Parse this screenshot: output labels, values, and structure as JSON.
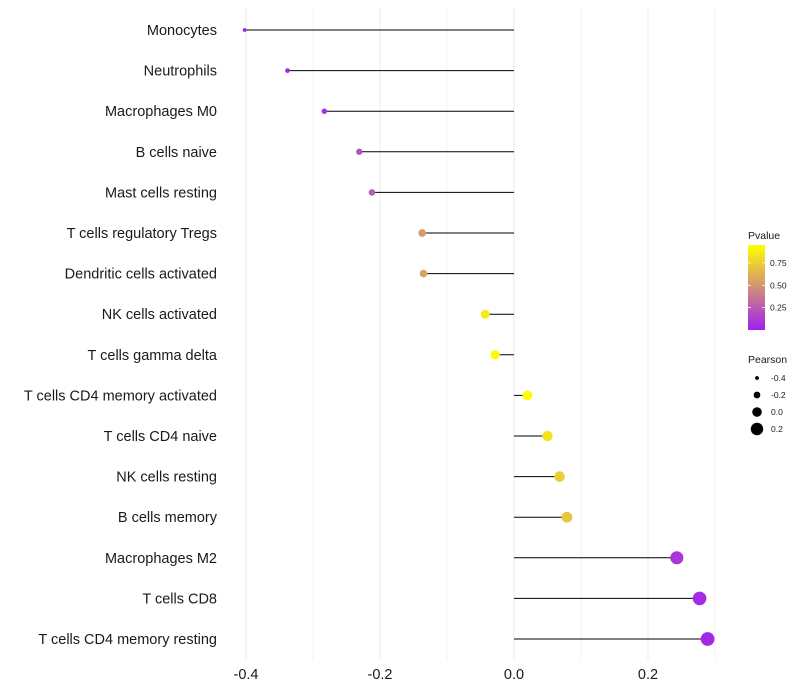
{
  "chart_data": {
    "type": "lollipop",
    "title": "",
    "xlabel": "",
    "ylabel": "",
    "xlim": [
      -0.4,
      0.3
    ],
    "xticks": [
      -0.4,
      -0.2,
      0.0,
      0.2
    ],
    "xtick_labels": [
      "-0.4",
      "-0.2",
      "0.0",
      "0.2"
    ],
    "grid": true,
    "baseline": 0,
    "categories": [
      "Monocytes",
      "Neutrophils",
      "Macrophages M0",
      "B cells naive",
      "Mast cells resting",
      "T cells regulatory  Tregs",
      "Dendritic cells activated",
      "NK cells activated",
      "T cells gamma delta",
      "T cells CD4 memory activated",
      "T cells CD4 naive",
      "NK cells resting",
      "B cells memory",
      "Macrophages M2",
      "T cells CD8",
      "T cells CD4 memory resting"
    ],
    "pearson": [
      -0.402,
      -0.338,
      -0.283,
      -0.231,
      -0.212,
      -0.137,
      -0.135,
      -0.043,
      -0.028,
      0.02,
      0.05,
      0.068,
      0.079,
      0.243,
      0.277,
      0.289
    ],
    "pvalue": [
      0.01,
      0.03,
      0.07,
      0.2,
      0.27,
      0.53,
      0.56,
      0.86,
      0.92,
      0.94,
      0.83,
      0.74,
      0.71,
      0.09,
      0.05,
      0.04
    ],
    "legend": {
      "color": {
        "title": "Pvalue",
        "ticks": [
          0.75,
          0.5,
          0.25
        ],
        "tick_labels": [
          "0.75",
          "0.50",
          "0.25"
        ],
        "range": [
          0,
          0.95
        ],
        "low_color": "#a020f0",
        "high_color": "#ffff00"
      },
      "size": {
        "title": "Pearson",
        "values": [
          -0.4,
          -0.2,
          0.0,
          0.2
        ],
        "labels": [
          "-0.4",
          "-0.2",
          "0.0",
          "0.2"
        ]
      },
      "placement": "right"
    }
  },
  "colors": {
    "segment": "#000000",
    "grid": "#ebebeb"
  }
}
